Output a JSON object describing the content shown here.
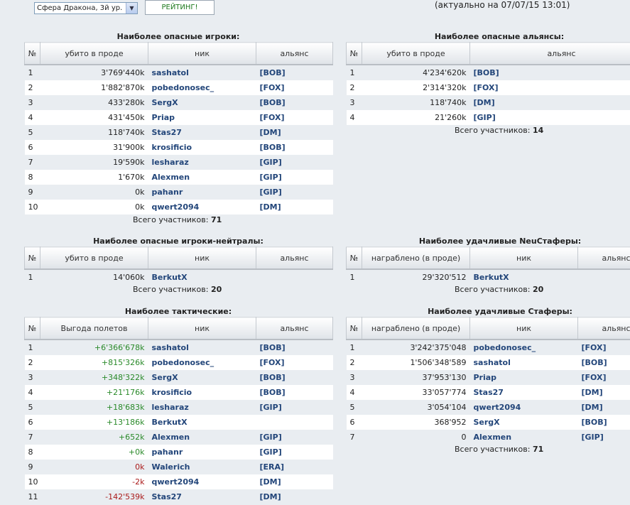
{
  "top": {
    "select_value": "Сфера Дракона, 3й ур.",
    "rating_button": "РЕЙТИНГ!",
    "actual_text": "(актуально на 07/07/15 13:01)"
  },
  "players": {
    "title": "Наиболее опасные игроки:",
    "headers": [
      "№",
      "убито в проде",
      "ник",
      "альянс"
    ],
    "rows": [
      {
        "n": "1",
        "v": "3'769'440k",
        "nick": "sashatol",
        "ally": "[BOB]"
      },
      {
        "n": "2",
        "v": "1'882'870k",
        "nick": "pobedonosec_",
        "ally": "[FOX]"
      },
      {
        "n": "3",
        "v": "433'280k",
        "nick": "SergX",
        "ally": "[BOB]"
      },
      {
        "n": "4",
        "v": "431'450k",
        "nick": "Priap",
        "ally": "[FOX]"
      },
      {
        "n": "5",
        "v": "118'740k",
        "nick": "Stas27",
        "ally": "[DM]"
      },
      {
        "n": "6",
        "v": "31'900k",
        "nick": "krosificio",
        "ally": "[BOB]"
      },
      {
        "n": "7",
        "v": "19'590k",
        "nick": "lesharaz",
        "ally": "[GIP]"
      },
      {
        "n": "8",
        "v": "1'670k",
        "nick": "Alexmen",
        "ally": "[GIP]"
      },
      {
        "n": "9",
        "v": "0k",
        "nick": "pahanr",
        "ally": "[GIP]"
      },
      {
        "n": "10",
        "v": "0k",
        "nick": "qwert2094",
        "ally": "[DM]"
      }
    ],
    "total_label": "Всего участников:",
    "total_value": "71"
  },
  "alliances": {
    "title": "Наиболее опасные альянсы:",
    "headers": [
      "№",
      "убито в проде",
      "альянс"
    ],
    "rows": [
      {
        "n": "1",
        "v": "4'234'620k",
        "ally": "[BOB]"
      },
      {
        "n": "2",
        "v": "2'314'320k",
        "ally": "[FOX]"
      },
      {
        "n": "3",
        "v": "118'740k",
        "ally": "[DM]"
      },
      {
        "n": "4",
        "v": "21'260k",
        "ally": "[GIP]"
      }
    ],
    "total_label": "Всего участников:",
    "total_value": "14"
  },
  "neutrals": {
    "title": "Наиболее опасные игроки-нейтралы:",
    "headers": [
      "№",
      "убито в проде",
      "ник",
      "альянс"
    ],
    "rows": [
      {
        "n": "1",
        "v": "14'060k",
        "nick": "BerkutX",
        "ally": ""
      }
    ],
    "total_label": "Всего участников:",
    "total_value": "20"
  },
  "neustafers": {
    "title": "Наиболее удачливые NeuСтаферы:",
    "headers": [
      "№",
      "награблено (в проде)",
      "ник",
      "альянс"
    ],
    "rows": [
      {
        "n": "1",
        "v": "29'320'512",
        "nick": "BerkutX",
        "ally": ""
      }
    ],
    "total_label": "Всего участников:",
    "total_value": "20"
  },
  "tactical": {
    "title": "Наиболее тактические:",
    "headers": [
      "№",
      "Выгода полетов",
      "ник",
      "альянс"
    ],
    "rows": [
      {
        "n": "1",
        "v": "+6'366'678k",
        "nick": "sashatol",
        "ally": "[BOB]",
        "s": "pos"
      },
      {
        "n": "2",
        "v": "+815'326k",
        "nick": "pobedonosec_",
        "ally": "[FOX]",
        "s": "pos"
      },
      {
        "n": "3",
        "v": "+348'322k",
        "nick": "SergX",
        "ally": "[BOB]",
        "s": "pos"
      },
      {
        "n": "4",
        "v": "+21'176k",
        "nick": "krosificio",
        "ally": "[BOB]",
        "s": "pos"
      },
      {
        "n": "5",
        "v": "+18'683k",
        "nick": "lesharaz",
        "ally": "[GIP]",
        "s": "pos"
      },
      {
        "n": "6",
        "v": "+13'186k",
        "nick": "BerkutX",
        "ally": "",
        "s": "pos"
      },
      {
        "n": "7",
        "v": "+652k",
        "nick": "Alexmen",
        "ally": "[GIP]",
        "s": "pos"
      },
      {
        "n": "8",
        "v": "+0k",
        "nick": "pahanr",
        "ally": "[GIP]",
        "s": "pos"
      },
      {
        "n": "9",
        "v": "0k",
        "nick": "Walerich",
        "ally": "[ERA]",
        "s": "zero"
      },
      {
        "n": "10",
        "v": "-2k",
        "nick": "qwert2094",
        "ally": "[DM]",
        "s": "neg"
      },
      {
        "n": "11",
        "v": "-142'539k",
        "nick": "Stas27",
        "ally": "[DM]",
        "s": "neg"
      }
    ]
  },
  "stafers": {
    "title": "Наиболее удачливые Стаферы:",
    "headers": [
      "№",
      "награблено (в проде)",
      "ник",
      "альянс"
    ],
    "rows": [
      {
        "n": "1",
        "v": "3'242'375'048",
        "nick": "pobedonosec_",
        "ally": "[FOX]"
      },
      {
        "n": "2",
        "v": "1'506'348'589",
        "nick": "sashatol",
        "ally": "[BOB]"
      },
      {
        "n": "3",
        "v": "37'953'130",
        "nick": "Priap",
        "ally": "[FOX]"
      },
      {
        "n": "4",
        "v": "33'057'774",
        "nick": "Stas27",
        "ally": "[DM]"
      },
      {
        "n": "5",
        "v": "3'054'104",
        "nick": "qwert2094",
        "ally": "[DM]"
      },
      {
        "n": "6",
        "v": "368'952",
        "nick": "SergX",
        "ally": "[BOB]"
      },
      {
        "n": "7",
        "v": "0",
        "nick": "Alexmen",
        "ally": "[GIP]"
      }
    ],
    "total_label": "Всего участников:",
    "total_value": "71"
  },
  "icons": {
    "select_arrow": "chevron-down-icon"
  }
}
